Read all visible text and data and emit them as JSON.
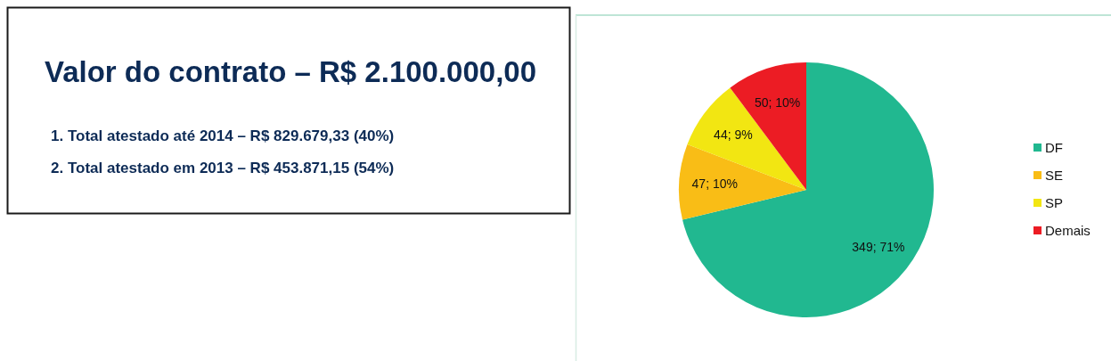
{
  "chart_data": [
    {
      "type": "other",
      "title": "Valor do contrato – R$ 2.100.000,00",
      "annotations": [
        "1. Total atestado até 2014 – R$ 829.679,33 (40%)",
        "2. Total atestado em 2013 – R$ 453.871,15 (54%)"
      ]
    },
    {
      "type": "pie",
      "categories": [
        "DF",
        "SE",
        "SP",
        "Demais"
      ],
      "values": [
        349,
        47,
        44,
        50
      ],
      "colors": [
        "#21b890",
        "#f9bd16",
        "#f2e612",
        "#ec1c24"
      ],
      "value_labels": [
        "349; 71%",
        "47; 10%",
        "44; 9%",
        "50; 10%"
      ],
      "legend": "right"
    }
  ]
}
